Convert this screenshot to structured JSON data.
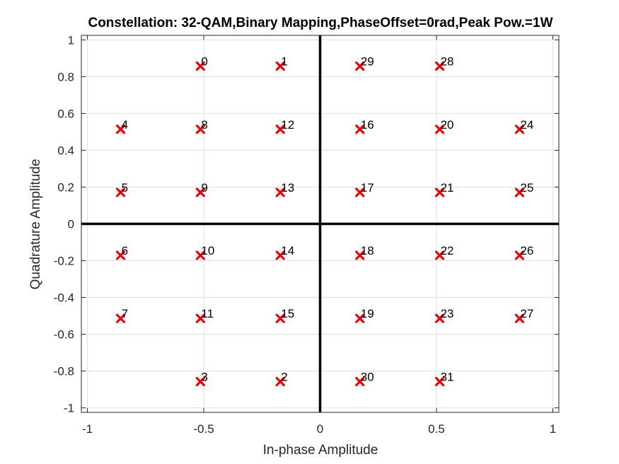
{
  "chart_data": {
    "type": "scatter",
    "title": "Constellation: 32-QAM,Binary Mapping,PhaseOffset=0rad,Peak Pow.=1W",
    "xlabel": "In-phase Amplitude",
    "ylabel": "Quadrature Amplitude",
    "xlim": [
      -1,
      1
    ],
    "ylim": [
      -1,
      1
    ],
    "xticks": [
      -1,
      -0.5,
      0,
      0.5,
      1
    ],
    "xtick_labels": [
      "-1",
      "-0.5",
      "0",
      "0.5",
      "1"
    ],
    "yticks": [
      -1,
      -0.8,
      -0.6,
      -0.4,
      -0.2,
      0,
      0.2,
      0.4,
      0.6,
      0.8,
      1
    ],
    "ytick_labels": [
      "-1",
      "-0.8",
      "-0.6",
      "-0.4",
      "-0.2",
      "0",
      "0.2",
      "0.4",
      "0.6",
      "0.8",
      "1"
    ],
    "grid": true,
    "marker": "x",
    "marker_color": "#e8000b",
    "points": [
      {
        "label": "0",
        "x": -0.514,
        "y": 0.857
      },
      {
        "label": "1",
        "x": -0.171,
        "y": 0.857
      },
      {
        "label": "29",
        "x": 0.171,
        "y": 0.857
      },
      {
        "label": "28",
        "x": 0.514,
        "y": 0.857
      },
      {
        "label": "4",
        "x": -0.857,
        "y": 0.514
      },
      {
        "label": "8",
        "x": -0.514,
        "y": 0.514
      },
      {
        "label": "12",
        "x": -0.171,
        "y": 0.514
      },
      {
        "label": "16",
        "x": 0.171,
        "y": 0.514
      },
      {
        "label": "20",
        "x": 0.514,
        "y": 0.514
      },
      {
        "label": "24",
        "x": 0.857,
        "y": 0.514
      },
      {
        "label": "5",
        "x": -0.857,
        "y": 0.171
      },
      {
        "label": "9",
        "x": -0.514,
        "y": 0.171
      },
      {
        "label": "13",
        "x": -0.171,
        "y": 0.171
      },
      {
        "label": "17",
        "x": 0.171,
        "y": 0.171
      },
      {
        "label": "21",
        "x": 0.514,
        "y": 0.171
      },
      {
        "label": "25",
        "x": 0.857,
        "y": 0.171
      },
      {
        "label": "6",
        "x": -0.857,
        "y": -0.171
      },
      {
        "label": "10",
        "x": -0.514,
        "y": -0.171
      },
      {
        "label": "14",
        "x": -0.171,
        "y": -0.171
      },
      {
        "label": "18",
        "x": 0.171,
        "y": -0.171
      },
      {
        "label": "22",
        "x": 0.514,
        "y": -0.171
      },
      {
        "label": "26",
        "x": 0.857,
        "y": -0.171
      },
      {
        "label": "7",
        "x": -0.857,
        "y": -0.514
      },
      {
        "label": "11",
        "x": -0.514,
        "y": -0.514
      },
      {
        "label": "15",
        "x": -0.171,
        "y": -0.514
      },
      {
        "label": "19",
        "x": 0.171,
        "y": -0.514
      },
      {
        "label": "23",
        "x": 0.514,
        "y": -0.514
      },
      {
        "label": "27",
        "x": 0.857,
        "y": -0.514
      },
      {
        "label": "3",
        "x": -0.514,
        "y": -0.857
      },
      {
        "label": "2",
        "x": -0.171,
        "y": -0.857
      },
      {
        "label": "30",
        "x": 0.171,
        "y": -0.857
      },
      {
        "label": "31",
        "x": 0.514,
        "y": -0.857
      }
    ]
  }
}
